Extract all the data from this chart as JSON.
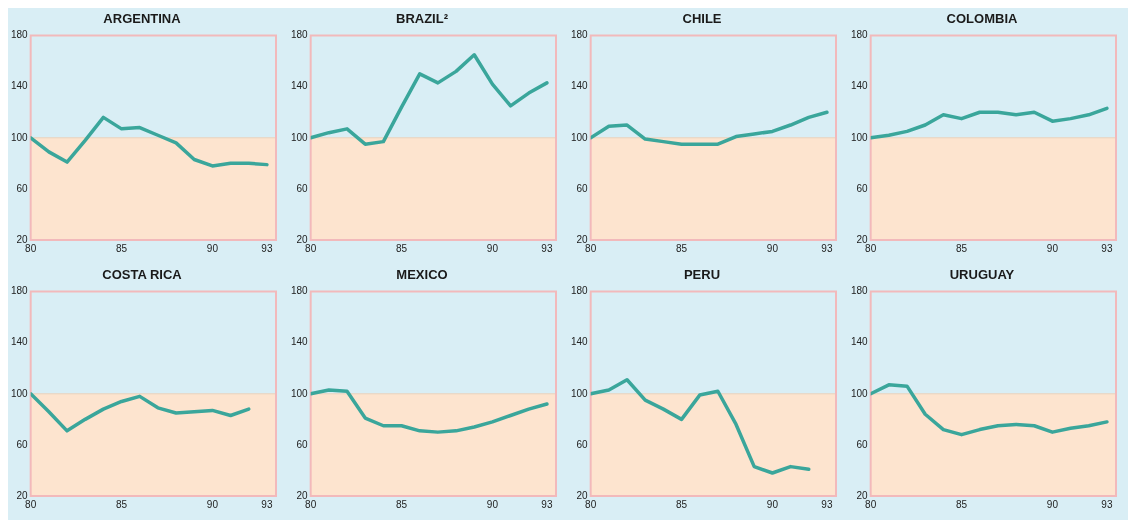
{
  "chart_data": [
    {
      "type": "line",
      "title": "ARGENTINA",
      "x": [
        80,
        81,
        82,
        83,
        84,
        85,
        86,
        87,
        88,
        89,
        90,
        91,
        92,
        93
      ],
      "values": [
        100,
        89,
        81,
        98,
        116,
        107,
        108,
        102,
        96,
        83,
        78,
        80,
        80,
        79
      ],
      "color": "#3aa69b",
      "xlim": [
        80,
        93.5
      ],
      "xticks": [
        80,
        85,
        90,
        93
      ],
      "ylim": [
        20,
        180
      ],
      "yticks": [
        20,
        60,
        100,
        140,
        180
      ],
      "ref_lines": [
        {
          "axis": "y",
          "value": 100,
          "color": "#ead2bd"
        }
      ],
      "bands": [
        {
          "axis": "y",
          "from": 20,
          "to": 100,
          "color": "#fde4cf"
        }
      ]
    },
    {
      "type": "line",
      "title": "BRAZIL²",
      "x": [
        80,
        81,
        82,
        83,
        84,
        85,
        86,
        87,
        88,
        89,
        90,
        91,
        92,
        93
      ],
      "values": [
        100,
        104,
        107,
        95,
        97,
        124,
        150,
        143,
        152,
        165,
        142,
        125,
        135,
        143
      ],
      "color": "#3aa69b",
      "xlim": [
        80,
        93.5
      ],
      "xticks": [
        80,
        85,
        90,
        93
      ],
      "ylim": [
        20,
        180
      ],
      "yticks": [
        20,
        60,
        100,
        140,
        180
      ],
      "ref_lines": [
        {
          "axis": "y",
          "value": 100,
          "color": "#ead2bd"
        }
      ],
      "bands": [
        {
          "axis": "y",
          "from": 20,
          "to": 100,
          "color": "#fde4cf"
        }
      ]
    },
    {
      "type": "line",
      "title": "CHILE",
      "x": [
        80,
        81,
        82,
        83,
        84,
        85,
        86,
        87,
        88,
        89,
        90,
        91,
        92,
        93
      ],
      "values": [
        100,
        109,
        110,
        99,
        97,
        95,
        95,
        95,
        101,
        103,
        105,
        110,
        116,
        120
      ],
      "color": "#3aa69b",
      "xlim": [
        80,
        93.5
      ],
      "xticks": [
        80,
        85,
        90,
        93
      ],
      "ylim": [
        20,
        180
      ],
      "yticks": [
        20,
        60,
        100,
        140,
        180
      ],
      "ref_lines": [
        {
          "axis": "y",
          "value": 100,
          "color": "#ead2bd"
        }
      ],
      "bands": [
        {
          "axis": "y",
          "from": 20,
          "to": 100,
          "color": "#fde4cf"
        }
      ]
    },
    {
      "type": "line",
      "title": "COLOMBIA",
      "x": [
        80,
        81,
        82,
        83,
        84,
        85,
        86,
        87,
        88,
        89,
        90,
        91,
        92,
        93
      ],
      "values": [
        100,
        102,
        105,
        110,
        118,
        115,
        120,
        120,
        118,
        120,
        113,
        115,
        118,
        123
      ],
      "color": "#3aa69b",
      "xlim": [
        80,
        93.5
      ],
      "xticks": [
        80,
        85,
        90,
        93
      ],
      "ylim": [
        20,
        180
      ],
      "yticks": [
        20,
        60,
        100,
        140,
        180
      ],
      "ref_lines": [
        {
          "axis": "y",
          "value": 100,
          "color": "#ead2bd"
        }
      ],
      "bands": [
        {
          "axis": "y",
          "from": 20,
          "to": 100,
          "color": "#fde4cf"
        }
      ]
    },
    {
      "type": "line",
      "title": "COSTA RICA",
      "x": [
        80,
        81,
        82,
        83,
        84,
        85,
        86,
        87,
        88,
        89,
        90,
        91,
        92
      ],
      "values": [
        100,
        86,
        71,
        80,
        88,
        94,
        98,
        89,
        85,
        86,
        87,
        83,
        88
      ],
      "color": "#3aa69b",
      "xlim": [
        80,
        93.5
      ],
      "xticks": [
        80,
        85,
        90,
        93
      ],
      "ylim": [
        20,
        180
      ],
      "yticks": [
        20,
        60,
        100,
        140,
        180
      ],
      "ref_lines": [
        {
          "axis": "y",
          "value": 100,
          "color": "#ead2bd"
        }
      ],
      "bands": [
        {
          "axis": "y",
          "from": 20,
          "to": 100,
          "color": "#fde4cf"
        }
      ]
    },
    {
      "type": "line",
      "title": "MEXICO",
      "x": [
        80,
        81,
        82,
        83,
        84,
        85,
        86,
        87,
        88,
        89,
        90,
        91,
        92,
        93
      ],
      "values": [
        100,
        103,
        102,
        81,
        75,
        75,
        71,
        70,
        71,
        74,
        78,
        83,
        88,
        92
      ],
      "color": "#3aa69b",
      "xlim": [
        80,
        93.5
      ],
      "xticks": [
        80,
        85,
        90,
        93
      ],
      "ylim": [
        20,
        180
      ],
      "yticks": [
        20,
        60,
        100,
        140,
        180
      ],
      "ref_lines": [
        {
          "axis": "y",
          "value": 100,
          "color": "#ead2bd"
        }
      ],
      "bands": [
        {
          "axis": "y",
          "from": 20,
          "to": 100,
          "color": "#fde4cf"
        }
      ]
    },
    {
      "type": "line",
      "title": "PERU",
      "x": [
        80,
        81,
        82,
        83,
        84,
        85,
        86,
        87,
        88,
        89,
        90,
        91,
        92
      ],
      "values": [
        100,
        103,
        111,
        95,
        88,
        80,
        99,
        102,
        76,
        43,
        38,
        43,
        41
      ],
      "color": "#3aa69b",
      "xlim": [
        80,
        93.5
      ],
      "xticks": [
        80,
        85,
        90,
        93
      ],
      "ylim": [
        20,
        180
      ],
      "yticks": [
        20,
        60,
        100,
        140,
        180
      ],
      "ref_lines": [
        {
          "axis": "y",
          "value": 100,
          "color": "#ead2bd"
        }
      ],
      "bands": [
        {
          "axis": "y",
          "from": 20,
          "to": 100,
          "color": "#fde4cf"
        }
      ]
    },
    {
      "type": "line",
      "title": "URUGUAY",
      "x": [
        80,
        81,
        82,
        83,
        84,
        85,
        86,
        87,
        88,
        89,
        90,
        91,
        92,
        93
      ],
      "values": [
        100,
        107,
        106,
        84,
        72,
        68,
        72,
        75,
        76,
        75,
        70,
        73,
        75,
        78
      ],
      "color": "#3aa69b",
      "xlim": [
        80,
        93.5
      ],
      "xticks": [
        80,
        85,
        90,
        93
      ],
      "ylim": [
        20,
        180
      ],
      "yticks": [
        20,
        60,
        100,
        140,
        180
      ],
      "ref_lines": [
        {
          "axis": "y",
          "value": 100,
          "color": "#ead2bd"
        }
      ],
      "bands": [
        {
          "axis": "y",
          "from": 20,
          "to": 100,
          "color": "#fde4cf"
        }
      ]
    }
  ]
}
